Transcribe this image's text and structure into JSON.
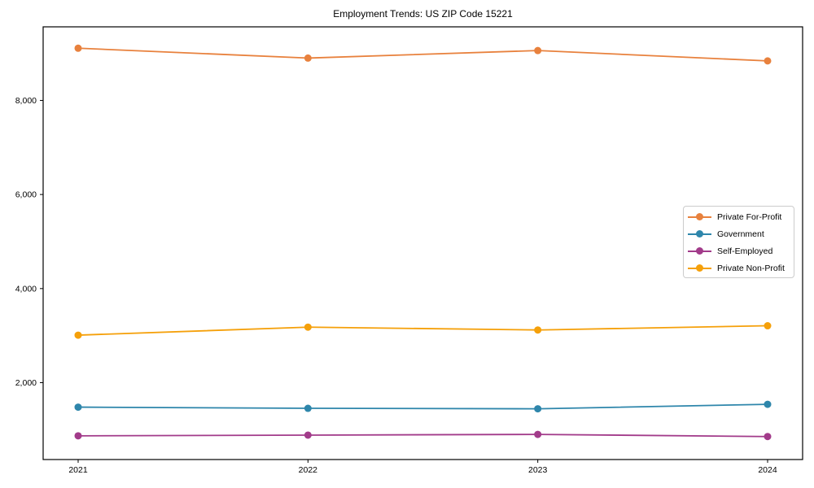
{
  "chart_data": {
    "type": "line",
    "title": "Employment Trends: US ZIP Code 15221",
    "x": [
      2021,
      2022,
      2023,
      2024
    ],
    "x_tick_labels": [
      "2021",
      "2022",
      "2023",
      "2024"
    ],
    "y_tick_values": [
      2000,
      4000,
      6000,
      8000
    ],
    "y_tick_labels": [
      "2,000",
      "4,000",
      "6,000",
      "8,000"
    ],
    "ylim": [
      366,
      9564
    ],
    "grid": false,
    "legend_position": "center-right",
    "frame": "full-box",
    "series": [
      {
        "name": "Private For-Profit",
        "color": "#E8813D",
        "values": [
          9110,
          8900,
          9060,
          8840
        ]
      },
      {
        "name": "Government",
        "color": "#2E86AB",
        "values": [
          1480,
          1455,
          1445,
          1540
        ]
      },
      {
        "name": "Self-Employed",
        "color": "#A23B8A",
        "values": [
          870,
          885,
          900,
          855
        ]
      },
      {
        "name": "Private Non-Profit",
        "color": "#F5A00A",
        "values": [
          3010,
          3180,
          3120,
          3210
        ]
      }
    ]
  }
}
